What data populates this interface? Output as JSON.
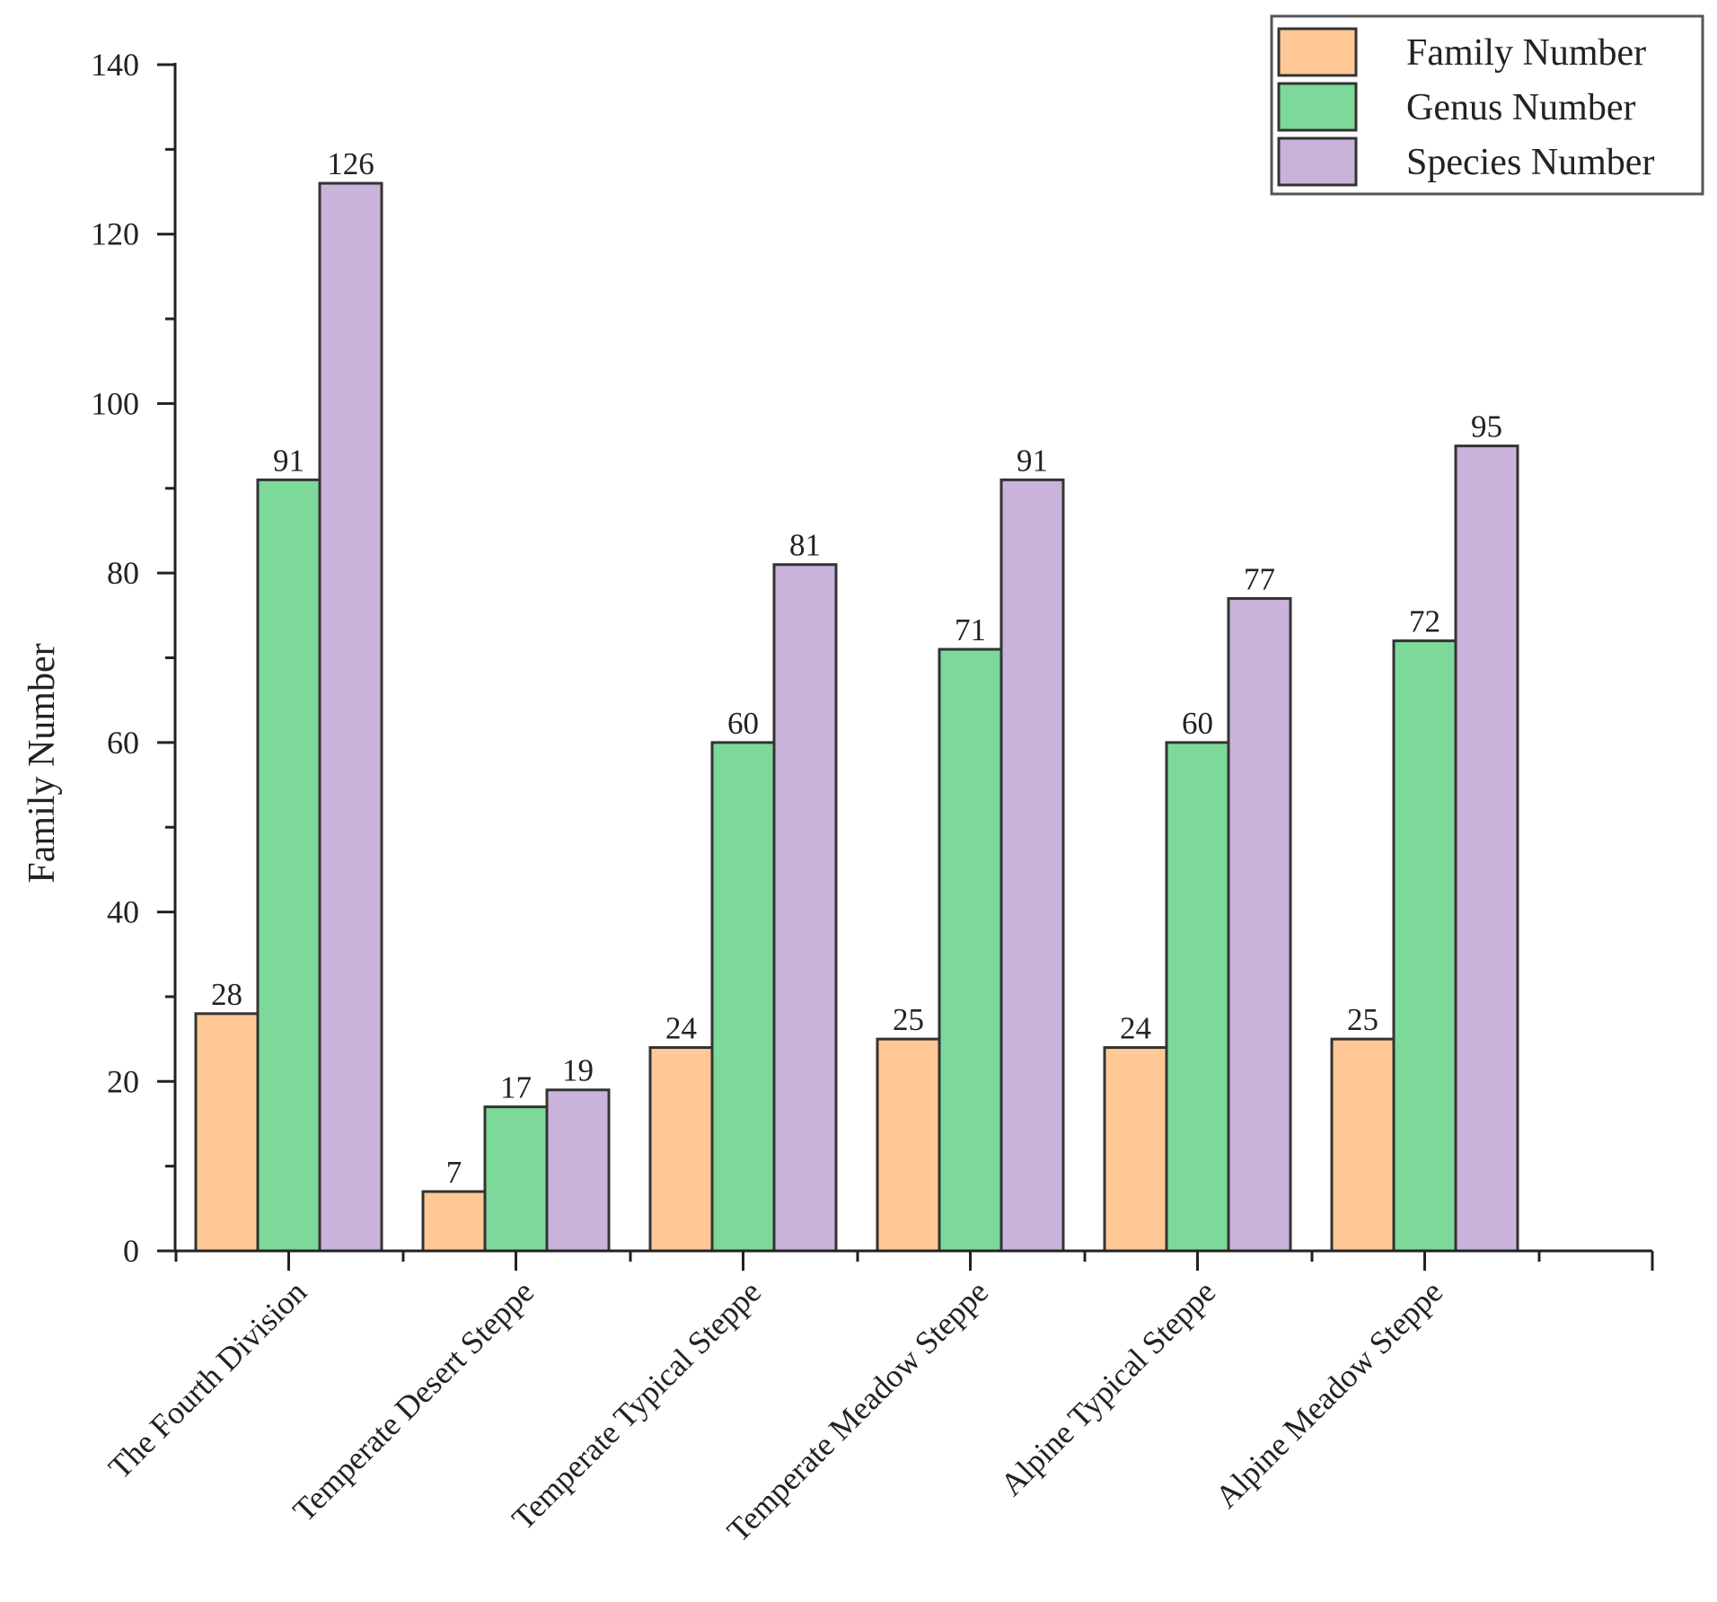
{
  "chart_data": {
    "type": "bar",
    "title": "",
    "xlabel": "",
    "ylabel": "Family Number",
    "ylim": [
      0,
      140
    ],
    "yticks": [
      0,
      20,
      40,
      60,
      80,
      100,
      120,
      140
    ],
    "ytick_labels": [
      "0",
      "20",
      "40",
      "60",
      "80",
      "100",
      "120",
      "140"
    ],
    "grid": false,
    "legend_position": "top-right",
    "categories": [
      "The Fourth Division",
      "Temperate Desert Steppe",
      "Temperate Typical Steppe",
      "Temperate Meadow Steppe",
      "Alpine Typical Steppe",
      "Alpine Meadow Steppe"
    ],
    "series": [
      {
        "name": "Family Number",
        "color": "#FFC896",
        "values": [
          28,
          7,
          24,
          25,
          24,
          25
        ],
        "value_labels": [
          "28",
          "7",
          "24",
          "25",
          "24",
          "25"
        ]
      },
      {
        "name": "Genus Number",
        "color": "#7DD99A",
        "values": [
          91,
          17,
          60,
          71,
          60,
          72
        ],
        "value_labels": [
          "91",
          "17",
          "60",
          "71",
          "60",
          "72"
        ]
      },
      {
        "name": "Species Number",
        "color": "#C9B3DA",
        "values": [
          126,
          19,
          81,
          91,
          77,
          95
        ],
        "value_labels": [
          "126",
          "19",
          "81",
          "91",
          "77",
          "95"
        ]
      }
    ]
  },
  "colors": {
    "axis": "#222222",
    "bar_stroke": "#333333",
    "legend_border": "#555555"
  }
}
